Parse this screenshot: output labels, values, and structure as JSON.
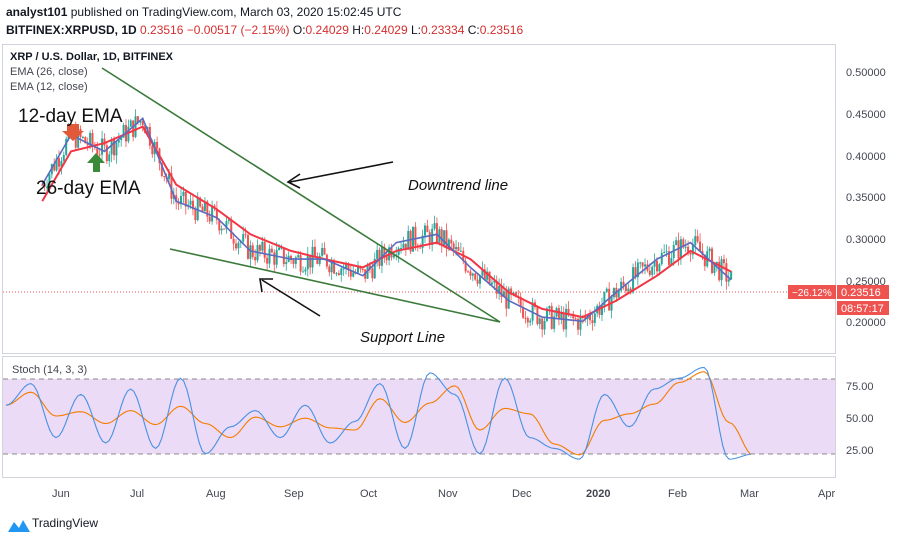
{
  "header": {
    "author": "analyst101",
    "published_text": "published on TradingView.com, March 03, 2020 15:02:45 UTC",
    "symbol_line": {
      "symbol": "BITFINEX:XRPUSD, 1D",
      "last": "0.23516",
      "change": "−0.00517 (−2.15%)",
      "o_label": "O:",
      "o": "0.24029",
      "h_label": "H:",
      "h": "0.24029",
      "l_label": "L:",
      "l": "0.23334",
      "c_label": "C:",
      "c": "0.23516"
    }
  },
  "legend": {
    "title": "XRP / U.S. Dollar, 1D, BITFINEX",
    "ema26": "EMA (26, close)",
    "ema12": "EMA (12, close)"
  },
  "annotations": {
    "ema12_label": "12-day EMA",
    "ema26_label": "26-day EMA",
    "downtrend_label": "Downtrend line",
    "support_label": "Support  Line"
  },
  "price_axis": {
    "ticks": [
      "0.50000",
      "0.45000",
      "0.40000",
      "0.35000",
      "0.30000",
      "0.25000",
      "0.20000"
    ],
    "last_price": "0.23516",
    "change_pct": "−26.12%",
    "countdown": "08:57:17"
  },
  "stoch": {
    "label": "Stoch (14, 3, 3)",
    "ticks": [
      "75.00",
      "50.00",
      "25.00"
    ]
  },
  "time_axis": [
    "Jun",
    "Jul",
    "Aug",
    "Sep",
    "Oct",
    "Nov",
    "Dec",
    "2020",
    "Feb",
    "Mar",
    "Apr"
  ],
  "footer": {
    "brand": "TradingView"
  },
  "colors": {
    "up": "#26a69a",
    "down": "#ef5350",
    "ema12": "#5b6bbf",
    "ema26": "#f23645",
    "trendline": "#3b8a3b",
    "stoch_k": "#4a90e2",
    "stoch_d": "#f57c00",
    "stoch_band": "#e1bee7"
  },
  "chart_data": {
    "type": "line",
    "title": "XRP / U.S. Dollar, 1D, BITFINEX",
    "ylim": [
      0.17,
      0.52
    ],
    "stoch_ylim": [
      0,
      100
    ],
    "series": [
      {
        "name": "EMA (12, close)",
        "x": [
          "2019-05-20",
          "2019-06-01",
          "2019-06-15",
          "2019-07-01",
          "2019-07-15",
          "2019-08-01",
          "2019-08-15",
          "2019-09-01",
          "2019-09-15",
          "2019-10-01",
          "2019-10-15",
          "2019-11-01",
          "2019-11-15",
          "2019-12-01",
          "2019-12-15",
          "2020-01-01",
          "2020-01-15",
          "2020-02-01",
          "2020-02-15",
          "2020-03-03"
        ],
        "values": [
          0.36,
          0.42,
          0.4,
          0.44,
          0.34,
          0.32,
          0.28,
          0.27,
          0.27,
          0.25,
          0.29,
          0.3,
          0.26,
          0.22,
          0.2,
          0.195,
          0.23,
          0.27,
          0.29,
          0.245
        ]
      },
      {
        "name": "EMA (26, close)",
        "x": [
          "2019-05-20",
          "2019-06-01",
          "2019-06-15",
          "2019-07-01",
          "2019-07-15",
          "2019-08-01",
          "2019-08-15",
          "2019-09-01",
          "2019-09-15",
          "2019-10-01",
          "2019-10-15",
          "2019-11-01",
          "2019-11-15",
          "2019-12-01",
          "2019-12-15",
          "2020-01-01",
          "2020-01-15",
          "2020-02-01",
          "2020-02-15",
          "2020-03-03"
        ],
        "values": [
          0.34,
          0.4,
          0.41,
          0.43,
          0.36,
          0.33,
          0.3,
          0.28,
          0.27,
          0.26,
          0.28,
          0.29,
          0.27,
          0.23,
          0.21,
          0.2,
          0.22,
          0.25,
          0.28,
          0.255
        ]
      }
    ],
    "stoch_series": [
      {
        "name": "Stoch %K",
        "values": [
          60,
          80,
          30,
          70,
          25,
          75,
          20,
          85,
          15,
          40,
          55,
          30,
          60,
          25,
          45,
          80,
          20,
          90,
          70,
          15,
          85,
          30,
          20,
          10,
          70,
          40,
          75,
          85,
          95,
          10,
          15
        ]
      }
    ]
  }
}
